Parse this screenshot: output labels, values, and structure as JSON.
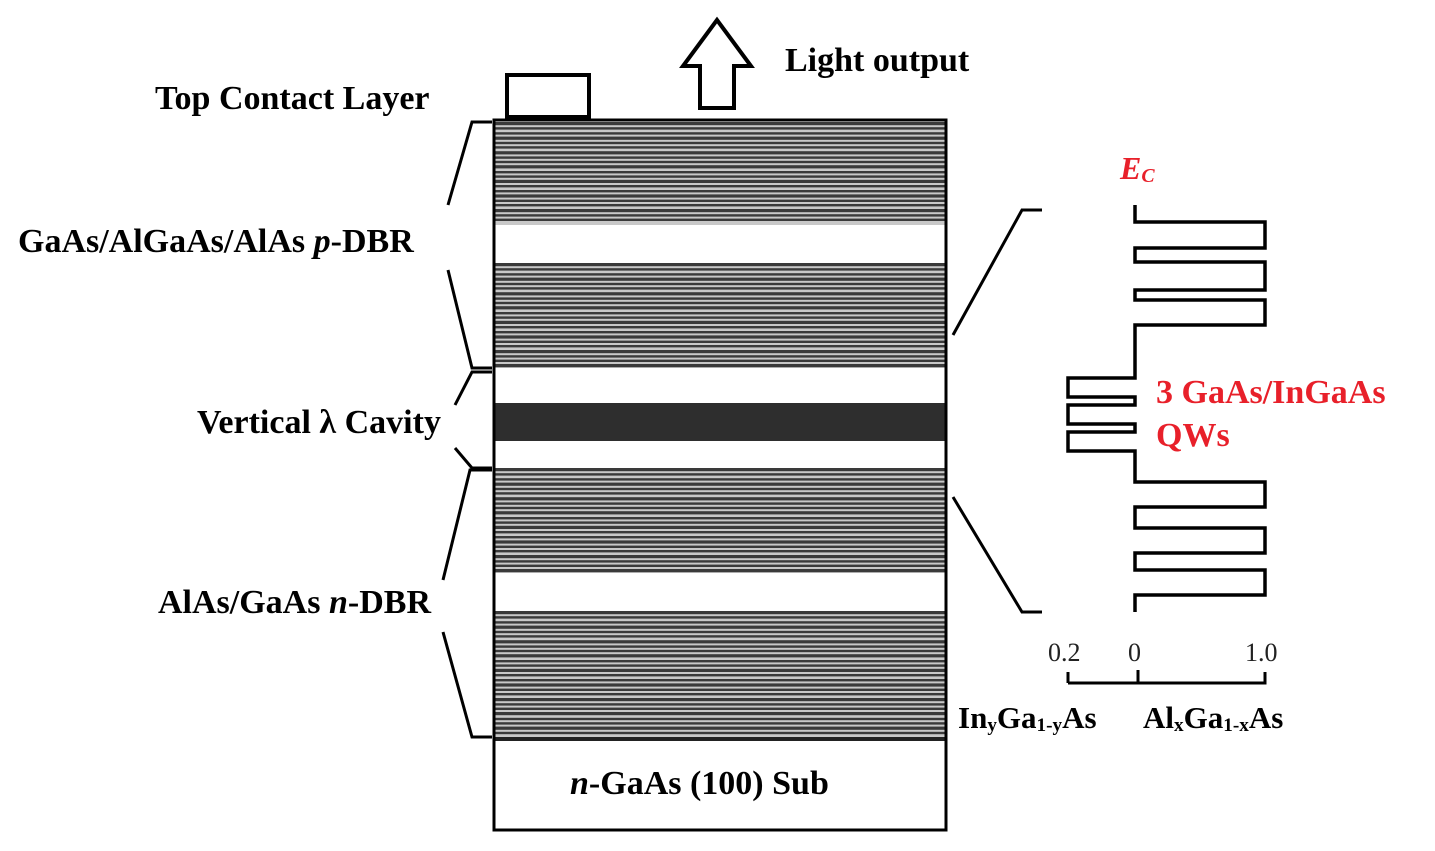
{
  "diagram": {
    "labels": {
      "top_contact": "Top Contact Layer",
      "light_output": "Light output",
      "p_dbr_prefix": "GaAs/AlGaAs/AlAs ",
      "p_dbr_italic": "p",
      "p_dbr_suffix": "-DBR",
      "cavity": "Vertical λ Cavity",
      "n_dbr_prefix": "AlAs/GaAs ",
      "n_dbr_italic": "n",
      "n_dbr_suffix": "-DBR",
      "substrate_italic": "n",
      "substrate_suffix": "-GaAs (100) Sub"
    },
    "band_diagram": {
      "ec_main": "E",
      "ec_sub": "C",
      "qw_line1": "3 GaAs/InGaAs",
      "qw_line2": "QWs",
      "tick_left": "0.2",
      "tick_zero": "0",
      "tick_right": "1.0",
      "axis_left": {
        "a": "In",
        "a_sub": "y",
        "b": "Ga",
        "b_sub": "1-y",
        "c": "As"
      },
      "axis_right": {
        "a": "Al",
        "a_sub": "x",
        "b": "Ga",
        "b_sub": "1-x",
        "c": "As"
      }
    },
    "colors": {
      "ink": "#000000",
      "accent_red": "#e8202a",
      "stripe_dark": "#3a3a3a",
      "stripe_light": "#c8c8c8",
      "active_region": "#2e2e2e"
    }
  }
}
